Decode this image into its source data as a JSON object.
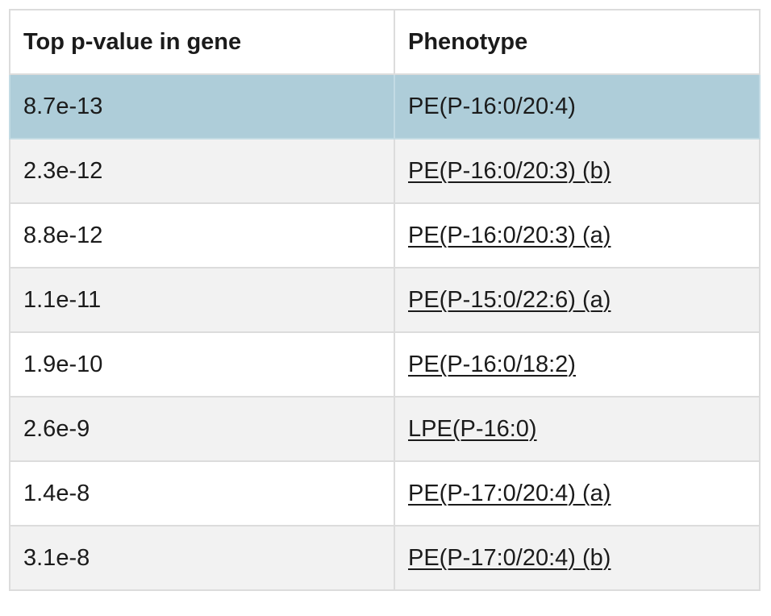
{
  "table": {
    "headers": [
      "Top p-value in gene",
      "Phenotype"
    ],
    "selected_index": 0,
    "rows": [
      {
        "pvalue": "8.7e-13",
        "phenotype": "PE(P-16:0/20:4)",
        "linked": false
      },
      {
        "pvalue": "2.3e-12",
        "phenotype": "PE(P-16:0/20:3) (b)",
        "linked": true
      },
      {
        "pvalue": "8.8e-12",
        "phenotype": "PE(P-16:0/20:3) (a)",
        "linked": true
      },
      {
        "pvalue": "1.1e-11",
        "phenotype": "PE(P-15:0/22:6) (a)",
        "linked": true
      },
      {
        "pvalue": "1.9e-10",
        "phenotype": "PE(P-16:0/18:2)",
        "linked": true
      },
      {
        "pvalue": "2.6e-9",
        "phenotype": "LPE(P-16:0)",
        "linked": true
      },
      {
        "pvalue": "1.4e-8",
        "phenotype": "PE(P-17:0/20:4) (a)",
        "linked": true
      },
      {
        "pvalue": "3.1e-8",
        "phenotype": "PE(P-17:0/20:4) (b)",
        "linked": true
      }
    ],
    "colors": {
      "selected_row_bg": "#aecdd9",
      "striped_row_bg": "#f2f2f2",
      "border": "#dcdcdc"
    }
  }
}
